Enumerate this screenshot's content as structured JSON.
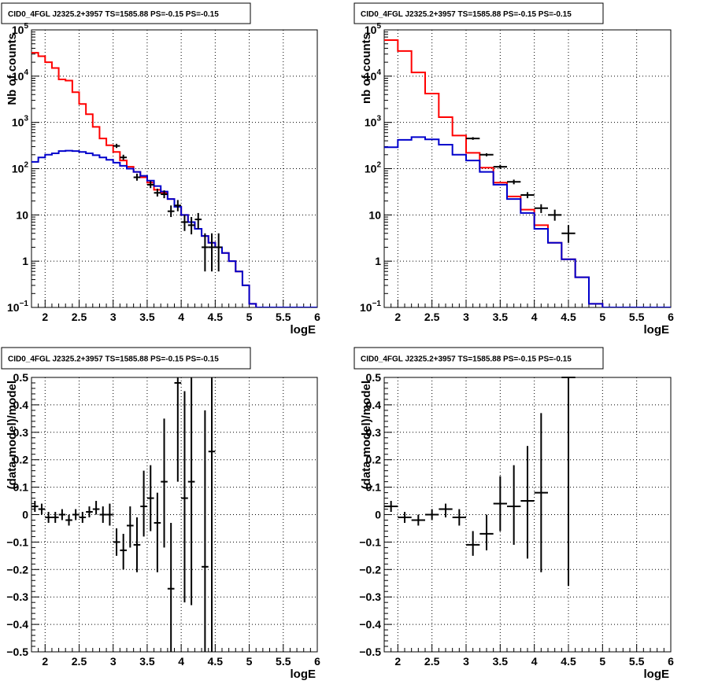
{
  "colors": {
    "total_model": "#ff0000",
    "source_model": "#0000cc",
    "data": "#000000",
    "grid": "#000000"
  },
  "chart_data": [
    {
      "type": "line",
      "panel": "top-left",
      "title": "CID0_4FGL J2325.2+3957 TS=1585.88 PS=-0.15 PS=-0.15",
      "xlabel": "logE",
      "ylabel": "Nb of counts",
      "xlim": [
        1.8,
        6
      ],
      "ylim": [
        0.1,
        100000
      ],
      "yscale": "log",
      "grid": true,
      "x_ticks": [
        "2",
        "2.5",
        "3",
        "3.5",
        "4",
        "4.5",
        "5",
        "5.5",
        "6"
      ],
      "y_ticks": [
        {
          "value": 0.1,
          "mantissa": "10",
          "exp": "−1"
        },
        {
          "value": 1,
          "mantissa": "1",
          "exp": ""
        },
        {
          "value": 10,
          "mantissa": "10",
          "exp": ""
        },
        {
          "value": 100,
          "mantissa": "10",
          "exp": "2"
        },
        {
          "value": 1000,
          "mantissa": "10",
          "exp": "3"
        },
        {
          "value": 10000,
          "mantissa": "10",
          "exp": "4"
        },
        {
          "value": 100000,
          "mantissa": "10",
          "exp": "5"
        }
      ],
      "bin_edges": [
        1.8,
        1.9,
        2.0,
        2.1,
        2.2,
        2.3,
        2.4,
        2.5,
        2.6,
        2.7,
        2.8,
        2.9,
        3.0,
        3.1,
        3.2,
        3.3,
        3.4,
        3.5,
        3.6,
        3.7,
        3.8,
        3.9,
        4.0,
        4.1,
        4.2,
        4.3,
        4.4,
        4.5,
        4.6,
        4.7,
        4.8,
        4.9,
        5.0,
        5.1,
        5.2,
        5.3,
        5.4,
        5.5,
        5.6,
        5.7,
        5.8,
        5.9,
        6.0
      ],
      "series": [
        {
          "role": "total_model",
          "values": [
            32000,
            27000,
            20000,
            15000,
            8500,
            8000,
            4500,
            2500,
            1500,
            800,
            450,
            320,
            230,
            150,
            110,
            85,
            65,
            50,
            35,
            30,
            22,
            15,
            10,
            7,
            5,
            3.5,
            2.5,
            2,
            1.5,
            1,
            0.6,
            0.3,
            0.12,
            0.1,
            0.1,
            0.1,
            0.1,
            0.1,
            0.1,
            0.1,
            0.1,
            0.1
          ]
        },
        {
          "role": "source_model",
          "values": [
            140,
            175,
            200,
            215,
            240,
            245,
            240,
            230,
            215,
            195,
            175,
            155,
            135,
            115,
            100,
            85,
            70,
            55,
            42,
            32,
            22,
            15,
            10,
            7,
            5,
            3.5,
            2.5,
            2,
            1.5,
            1,
            0.6,
            0.3,
            0.12,
            0.1,
            0.1,
            0.1,
            0.1,
            0.1,
            0.1,
            0.1,
            0.1,
            0.1
          ]
        },
        {
          "role": "data",
          "points": [
            {
              "x": 3.05,
              "y": 310,
              "dx": 0.05,
              "lo": 280,
              "hi": 345
            },
            {
              "x": 3.15,
              "y": 175,
              "dx": 0.05,
              "lo": 155,
              "hi": 200
            },
            {
              "x": 3.35,
              "y": 65,
              "dx": 0.05,
              "lo": 55,
              "hi": 78
            },
            {
              "x": 3.55,
              "y": 45,
              "dx": 0.05,
              "lo": 38,
              "hi": 54
            },
            {
              "x": 3.65,
              "y": 30,
              "dx": 0.05,
              "lo": 25,
              "hi": 37
            },
            {
              "x": 3.75,
              "y": 28,
              "dx": 0.05,
              "lo": 23,
              "hi": 34
            },
            {
              "x": 3.85,
              "y": 12,
              "dx": 0.05,
              "lo": 9,
              "hi": 16
            },
            {
              "x": 3.95,
              "y": 16,
              "dx": 0.05,
              "lo": 12,
              "hi": 21
            },
            {
              "x": 4.05,
              "y": 7,
              "dx": 0.05,
              "lo": 4.5,
              "hi": 10
            },
            {
              "x": 4.15,
              "y": 6,
              "dx": 0.05,
              "lo": 3.8,
              "hi": 9
            },
            {
              "x": 4.25,
              "y": 8,
              "dx": 0.05,
              "lo": 5,
              "hi": 11
            },
            {
              "x": 4.35,
              "y": 2,
              "dx": 0.05,
              "lo": 0.6,
              "hi": 4
            },
            {
              "x": 4.45,
              "y": 2,
              "dx": 0.05,
              "lo": 0.6,
              "hi": 4
            },
            {
              "x": 4.55,
              "y": 2,
              "dx": 0.05,
              "lo": 0.6,
              "hi": 4
            }
          ]
        }
      ]
    },
    {
      "type": "line",
      "panel": "top-right",
      "title": "CID0_4FGL J2325.2+3957 TS=1585.88 PS=-0.15 PS=-0.15",
      "xlabel": "logE",
      "ylabel": "nb of counts",
      "xlim": [
        1.8,
        6
      ],
      "ylim": [
        0.1,
        100000
      ],
      "yscale": "log",
      "grid": true,
      "x_ticks": [
        "2",
        "2.5",
        "3",
        "3.5",
        "4",
        "4.5",
        "5",
        "5.5",
        "6"
      ],
      "y_ticks": [
        {
          "value": 0.1,
          "mantissa": "10",
          "exp": "−1"
        },
        {
          "value": 1,
          "mantissa": "1",
          "exp": ""
        },
        {
          "value": 10,
          "mantissa": "10",
          "exp": ""
        },
        {
          "value": 100,
          "mantissa": "10",
          "exp": "2"
        },
        {
          "value": 1000,
          "mantissa": "10",
          "exp": "3"
        },
        {
          "value": 10000,
          "mantissa": "10",
          "exp": "4"
        },
        {
          "value": 100000,
          "mantissa": "10",
          "exp": "5"
        }
      ],
      "bin_edges": [
        1.8,
        2.0,
        2.2,
        2.4,
        2.6,
        2.8,
        3.0,
        3.2,
        3.4,
        3.6,
        3.8,
        4.0,
        4.2,
        4.4,
        4.6,
        4.8,
        5.0,
        5.2,
        5.4,
        5.6,
        5.8,
        6.0
      ],
      "series": [
        {
          "role": "total_model",
          "values": [
            60000,
            35000,
            12000,
            4200,
            1300,
            520,
            220,
            105,
            50,
            25,
            13,
            6,
            2.5,
            1.1,
            0.45,
            0.12,
            0.1,
            0.1,
            0.1,
            0.1,
            0.1
          ]
        },
        {
          "role": "source_model",
          "values": [
            290,
            420,
            480,
            430,
            330,
            200,
            150,
            85,
            45,
            22,
            11,
            5,
            2.5,
            1.1,
            0.45,
            0.12,
            0.1,
            0.1,
            0.1,
            0.1,
            0.1
          ]
        },
        {
          "role": "data",
          "points": [
            {
              "x": 3.1,
              "y": 450,
              "dx": 0.1,
              "lo": 420,
              "hi": 480
            },
            {
              "x": 3.3,
              "y": 200,
              "dx": 0.1,
              "lo": 185,
              "hi": 215
            },
            {
              "x": 3.5,
              "y": 110,
              "dx": 0.1,
              "lo": 100,
              "hi": 121
            },
            {
              "x": 3.7,
              "y": 52,
              "dx": 0.1,
              "lo": 46,
              "hi": 58
            },
            {
              "x": 3.9,
              "y": 27,
              "dx": 0.1,
              "lo": 23,
              "hi": 31
            },
            {
              "x": 4.1,
              "y": 14,
              "dx": 0.1,
              "lo": 11,
              "hi": 17
            },
            {
              "x": 4.3,
              "y": 10,
              "dx": 0.1,
              "lo": 7.5,
              "hi": 13
            },
            {
              "x": 4.5,
              "y": 4,
              "dx": 0.1,
              "lo": 2.5,
              "hi": 6
            }
          ]
        }
      ]
    },
    {
      "type": "scatter",
      "panel": "bottom-left",
      "title": "CID0_4FGL J2325.2+3957 TS=1585.88 PS=-0.15 PS=-0.15",
      "xlabel": "logE",
      "ylabel": "(data-model)/model",
      "xlim": [
        1.8,
        6
      ],
      "ylim": [
        -0.5,
        0.5
      ],
      "yscale": "linear",
      "grid": true,
      "x_ticks": [
        "2",
        "2.5",
        "3",
        "3.5",
        "4",
        "4.5",
        "5",
        "5.5",
        "6"
      ],
      "y_ticks": [
        "−0.5",
        "−0.4",
        "−0.3",
        "−0.2",
        "−0.1",
        "0",
        "0.1",
        "0.2",
        "0.3",
        "0.4",
        "0.5"
      ],
      "points": [
        {
          "x": 1.85,
          "y": 0.03,
          "dx": 0.05,
          "lo": 0.01,
          "hi": 0.05
        },
        {
          "x": 1.95,
          "y": 0.02,
          "dx": 0.05,
          "lo": 0.0,
          "hi": 0.04
        },
        {
          "x": 2.05,
          "y": -0.01,
          "dx": 0.05,
          "lo": -0.03,
          "hi": 0.01
        },
        {
          "x": 2.15,
          "y": -0.01,
          "dx": 0.05,
          "lo": -0.03,
          "hi": 0.01
        },
        {
          "x": 2.25,
          "y": 0.0,
          "dx": 0.05,
          "lo": -0.02,
          "hi": 0.02
        },
        {
          "x": 2.35,
          "y": -0.02,
          "dx": 0.05,
          "lo": -0.04,
          "hi": 0.0
        },
        {
          "x": 2.45,
          "y": 0.0,
          "dx": 0.05,
          "lo": -0.02,
          "hi": 0.02
        },
        {
          "x": 2.55,
          "y": -0.01,
          "dx": 0.05,
          "lo": -0.03,
          "hi": 0.01
        },
        {
          "x": 2.65,
          "y": 0.01,
          "dx": 0.05,
          "lo": -0.01,
          "hi": 0.03
        },
        {
          "x": 2.75,
          "y": 0.02,
          "dx": 0.05,
          "lo": 0.0,
          "hi": 0.05
        },
        {
          "x": 2.85,
          "y": 0.0,
          "dx": 0.05,
          "lo": -0.03,
          "hi": 0.03
        },
        {
          "x": 2.95,
          "y": 0.0,
          "dx": 0.05,
          "lo": -0.04,
          "hi": 0.04
        },
        {
          "x": 3.05,
          "y": -0.1,
          "dx": 0.05,
          "lo": -0.15,
          "hi": -0.05
        },
        {
          "x": 3.15,
          "y": -0.13,
          "dx": 0.05,
          "lo": -0.2,
          "hi": -0.07
        },
        {
          "x": 3.25,
          "y": -0.04,
          "dx": 0.05,
          "lo": -0.12,
          "hi": 0.03
        },
        {
          "x": 3.35,
          "y": -0.11,
          "dx": 0.05,
          "lo": -0.21,
          "hi": -0.01
        },
        {
          "x": 3.45,
          "y": 0.03,
          "dx": 0.05,
          "lo": -0.08,
          "hi": 0.16
        },
        {
          "x": 3.55,
          "y": 0.06,
          "dx": 0.05,
          "lo": -0.06,
          "hi": 0.18
        },
        {
          "x": 3.65,
          "y": -0.03,
          "dx": 0.05,
          "lo": -0.21,
          "hi": 0.08
        },
        {
          "x": 3.75,
          "y": 0.12,
          "dx": 0.05,
          "lo": -0.12,
          "hi": 0.35
        },
        {
          "x": 3.85,
          "y": -0.27,
          "dx": 0.05,
          "lo": -0.5,
          "hi": -0.03
        },
        {
          "x": 3.95,
          "y": 0.48,
          "dx": 0.05,
          "lo": 0.12,
          "hi": 0.5
        },
        {
          "x": 4.05,
          "y": 0.06,
          "dx": 0.05,
          "lo": -0.32,
          "hi": 0.45
        },
        {
          "x": 4.15,
          "y": 0.12,
          "dx": 0.05,
          "lo": -0.33,
          "hi": 0.5
        },
        {
          "x": 4.35,
          "y": -0.19,
          "dx": 0.05,
          "lo": -0.5,
          "hi": 0.38
        },
        {
          "x": 4.45,
          "y": 0.23,
          "dx": 0.05,
          "lo": -0.5,
          "hi": 0.5
        }
      ]
    },
    {
      "type": "scatter",
      "panel": "bottom-right",
      "title": "CID0_4FGL J2325.2+3957 TS=1585.88 PS=-0.15 PS=-0.15",
      "xlabel": "logE",
      "ylabel": "(data-model)/model",
      "xlim": [
        1.8,
        6
      ],
      "ylim": [
        -0.5,
        0.5
      ],
      "yscale": "linear",
      "grid": true,
      "x_ticks": [
        "2",
        "2.5",
        "3",
        "3.5",
        "4",
        "4.5",
        "5",
        "5.5",
        "6"
      ],
      "y_ticks": [
        "−0.5",
        "−0.4",
        "−0.3",
        "−0.2",
        "−0.1",
        "0",
        "0.1",
        "0.2",
        "0.3",
        "0.4",
        "0.5"
      ],
      "points": [
        {
          "x": 1.9,
          "y": 0.03,
          "dx": 0.1,
          "lo": 0.01,
          "hi": 0.05
        },
        {
          "x": 2.1,
          "y": -0.01,
          "dx": 0.1,
          "lo": -0.03,
          "hi": 0.01
        },
        {
          "x": 2.3,
          "y": -0.02,
          "dx": 0.1,
          "lo": -0.04,
          "hi": 0.0
        },
        {
          "x": 2.5,
          "y": 0.0,
          "dx": 0.1,
          "lo": -0.02,
          "hi": 0.02
        },
        {
          "x": 2.7,
          "y": 0.02,
          "dx": 0.1,
          "lo": -0.01,
          "hi": 0.04
        },
        {
          "x": 2.9,
          "y": -0.01,
          "dx": 0.1,
          "lo": -0.04,
          "hi": 0.02
        },
        {
          "x": 3.1,
          "y": -0.11,
          "dx": 0.1,
          "lo": -0.15,
          "hi": -0.06
        },
        {
          "x": 3.3,
          "y": -0.07,
          "dx": 0.1,
          "lo": -0.13,
          "hi": 0.0
        },
        {
          "x": 3.5,
          "y": 0.04,
          "dx": 0.1,
          "lo": -0.06,
          "hi": 0.14
        },
        {
          "x": 3.7,
          "y": 0.03,
          "dx": 0.1,
          "lo": -0.11,
          "hi": 0.18
        },
        {
          "x": 3.9,
          "y": 0.05,
          "dx": 0.1,
          "lo": -0.16,
          "hi": 0.25
        },
        {
          "x": 4.1,
          "y": 0.08,
          "dx": 0.1,
          "lo": -0.21,
          "hi": 0.37
        },
        {
          "x": 4.5,
          "y": 0.5,
          "dx": 0.1,
          "lo": -0.26,
          "hi": 0.5
        }
      ]
    }
  ]
}
